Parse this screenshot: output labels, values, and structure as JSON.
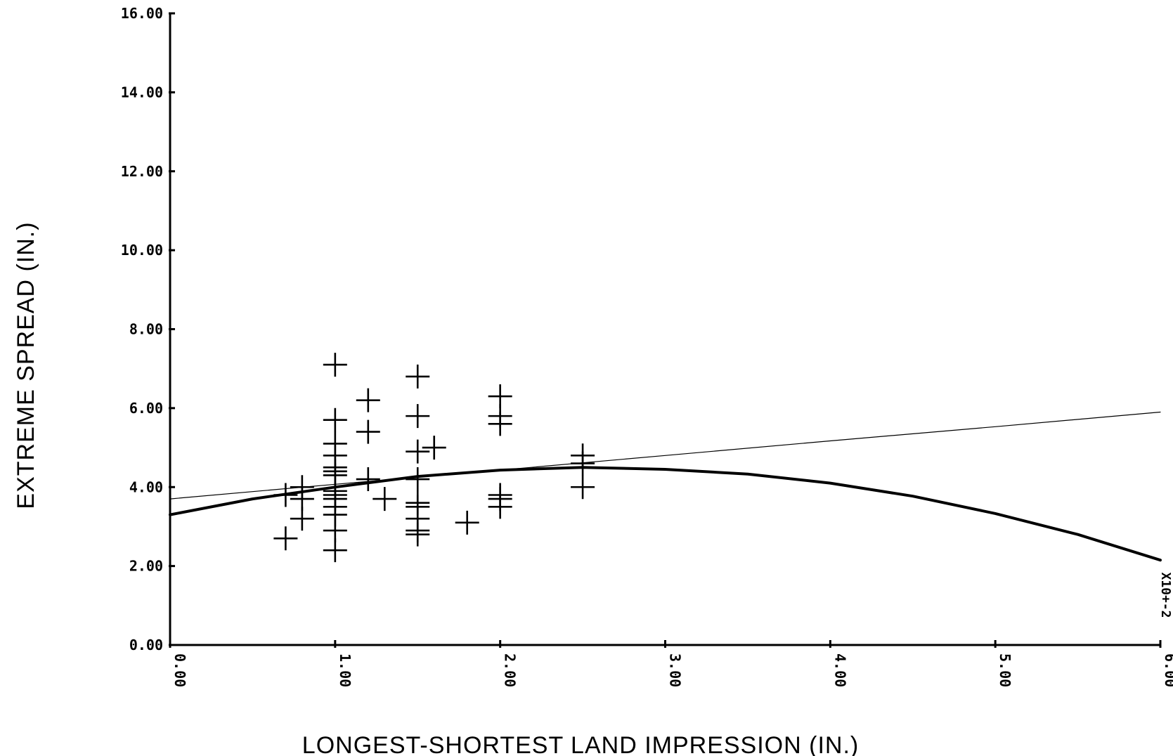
{
  "chart_data": {
    "type": "scatter",
    "title": "",
    "xlabel": "LONGEST-SHORTEST LAND IMPRESSION (IN.)",
    "ylabel": "EXTREME SPREAD (IN.)",
    "xlim": [
      0,
      6
    ],
    "ylim": [
      0,
      16
    ],
    "x_ticks": [
      "0.00",
      "1.00",
      "2.00",
      "3.00",
      "4.00",
      "5.00",
      "6.00"
    ],
    "y_ticks": [
      "0.00",
      "2.00",
      "4.00",
      "6.00",
      "8.00",
      "10.00",
      "12.00",
      "14.00",
      "16.00"
    ],
    "x_multiplier_label": "X10+-2",
    "grid": false,
    "series": [
      {
        "type": "scatter",
        "marker": "+",
        "points": [
          [
            0.7,
            3.8
          ],
          [
            0.7,
            2.7
          ],
          [
            0.8,
            4.0
          ],
          [
            0.8,
            3.7
          ],
          [
            0.8,
            3.2
          ],
          [
            1.0,
            7.1
          ],
          [
            1.0,
            5.7
          ],
          [
            1.0,
            5.1
          ],
          [
            1.0,
            4.8
          ],
          [
            1.0,
            4.5
          ],
          [
            1.0,
            4.4
          ],
          [
            1.0,
            4.3
          ],
          [
            1.0,
            3.9
          ],
          [
            1.0,
            3.8
          ],
          [
            1.0,
            3.7
          ],
          [
            1.0,
            3.5
          ],
          [
            1.0,
            3.3
          ],
          [
            1.0,
            2.9
          ],
          [
            1.0,
            2.4
          ],
          [
            1.2,
            6.2
          ],
          [
            1.2,
            5.4
          ],
          [
            1.2,
            4.2
          ],
          [
            1.3,
            3.7
          ],
          [
            1.5,
            6.8
          ],
          [
            1.5,
            5.8
          ],
          [
            1.5,
            4.9
          ],
          [
            1.5,
            4.2
          ],
          [
            1.5,
            3.6
          ],
          [
            1.5,
            3.5
          ],
          [
            1.5,
            3.2
          ],
          [
            1.5,
            2.9
          ],
          [
            1.5,
            2.8
          ],
          [
            1.6,
            5.0
          ],
          [
            1.8,
            3.1
          ],
          [
            2.0,
            6.3
          ],
          [
            2.0,
            5.8
          ],
          [
            2.0,
            5.6
          ],
          [
            2.0,
            3.8
          ],
          [
            2.0,
            3.7
          ],
          [
            2.0,
            3.5
          ],
          [
            2.5,
            4.8
          ],
          [
            2.5,
            4.6
          ],
          [
            2.5,
            4.0
          ]
        ]
      },
      {
        "type": "line",
        "style": "thin",
        "points": [
          [
            0.0,
            3.7
          ],
          [
            1.0,
            4.07
          ],
          [
            2.0,
            4.43
          ],
          [
            3.0,
            4.8
          ],
          [
            4.0,
            5.17
          ],
          [
            5.0,
            5.53
          ],
          [
            6.0,
            5.9
          ]
        ]
      },
      {
        "type": "line",
        "style": "thick",
        "points": [
          [
            0.0,
            3.3
          ],
          [
            0.5,
            3.7
          ],
          [
            1.0,
            4.0
          ],
          [
            1.5,
            4.27
          ],
          [
            2.0,
            4.43
          ],
          [
            2.5,
            4.5
          ],
          [
            3.0,
            4.45
          ],
          [
            3.5,
            4.33
          ],
          [
            4.0,
            4.1
          ],
          [
            4.5,
            3.77
          ],
          [
            5.0,
            3.33
          ],
          [
            5.5,
            2.8
          ],
          [
            6.0,
            2.15
          ]
        ]
      }
    ]
  }
}
